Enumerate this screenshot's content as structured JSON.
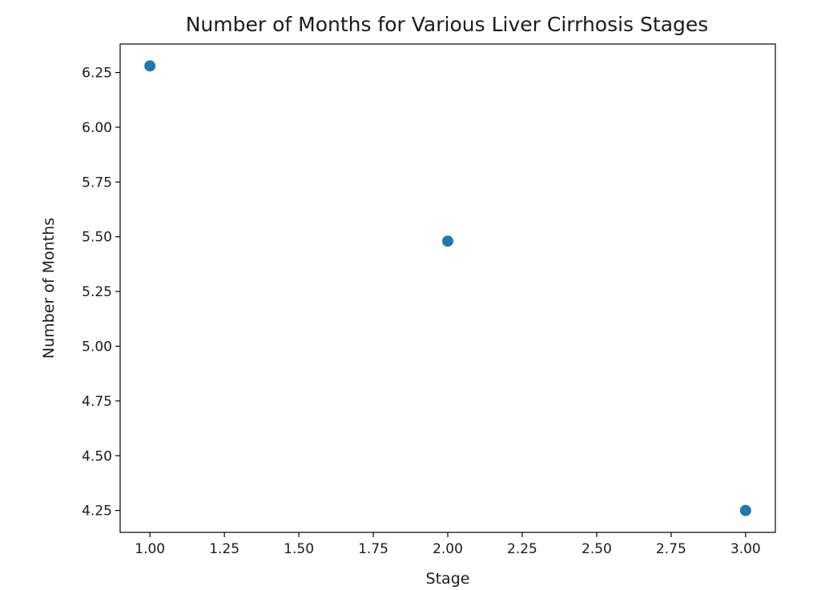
{
  "chart_data": {
    "type": "scatter",
    "title": "Number of Months for Various Liver Cirrhosis Stages",
    "xlabel": "Stage",
    "ylabel": "Number of Months",
    "xlim": [
      0.9,
      3.1
    ],
    "ylim": [
      4.15,
      6.38
    ],
    "xticks": [
      1.0,
      1.25,
      1.5,
      1.75,
      2.0,
      2.25,
      2.5,
      2.75,
      3.0
    ],
    "xtick_labels": [
      "1.00",
      "1.25",
      "1.50",
      "1.75",
      "2.00",
      "2.25",
      "2.50",
      "2.75",
      "3.00"
    ],
    "yticks": [
      4.25,
      4.5,
      4.75,
      5.0,
      5.25,
      5.5,
      5.75,
      6.0,
      6.25
    ],
    "ytick_labels": [
      "4.25",
      "4.50",
      "4.75",
      "5.00",
      "5.25",
      "5.50",
      "5.75",
      "6.00",
      "6.25"
    ],
    "series": [
      {
        "color": "#1f77b4",
        "x": [
          1,
          2,
          3
        ],
        "y": [
          6.28,
          5.48,
          4.25
        ]
      }
    ],
    "grid": false
  }
}
